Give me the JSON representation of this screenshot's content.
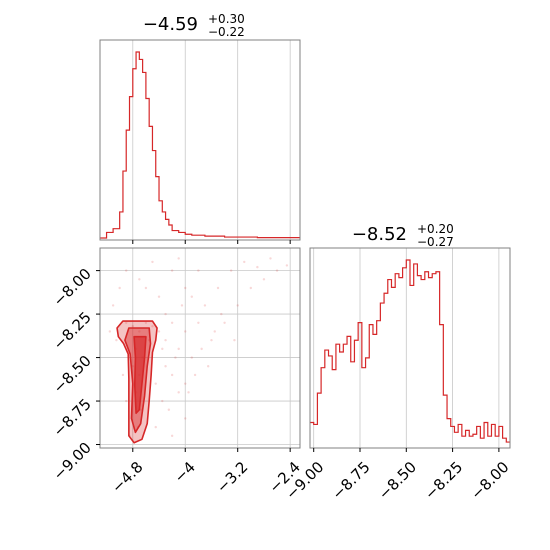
{
  "accent_color": "#d62728",
  "chart_data": [
    {
      "type": "histogram",
      "panel": "top-left",
      "title": {
        "value": "−4.59",
        "plus": "+0.30",
        "minus": "−0.22"
      },
      "xlim": [
        -5.3,
        -2.25
      ],
      "x_ticks": [
        -4.8,
        -4.0,
        -3.2,
        -2.4
      ],
      "grid": true,
      "bins": [
        [
          -5.3,
          -5.2,
          0.0
        ],
        [
          -5.2,
          -5.1,
          0.03
        ],
        [
          -5.1,
          -5.0,
          0.05
        ],
        [
          -5.0,
          -4.95,
          0.14
        ],
        [
          -4.95,
          -4.9,
          0.36
        ],
        [
          -4.9,
          -4.85,
          0.58
        ],
        [
          -4.85,
          -4.8,
          0.76
        ],
        [
          -4.8,
          -4.75,
          0.91
        ],
        [
          -4.75,
          -4.7,
          1.0
        ],
        [
          -4.7,
          -4.65,
          0.96
        ],
        [
          -4.65,
          -4.6,
          0.89
        ],
        [
          -4.6,
          -4.55,
          0.75
        ],
        [
          -4.55,
          -4.5,
          0.6
        ],
        [
          -4.5,
          -4.45,
          0.47
        ],
        [
          -4.45,
          -4.4,
          0.33
        ],
        [
          -4.4,
          -4.35,
          0.2
        ],
        [
          -4.35,
          -4.3,
          0.14
        ],
        [
          -4.3,
          -4.25,
          0.1
        ],
        [
          -4.25,
          -4.2,
          0.07
        ],
        [
          -4.2,
          -4.1,
          0.04
        ],
        [
          -4.1,
          -4.0,
          0.03
        ],
        [
          -4.0,
          -3.9,
          0.02
        ],
        [
          -3.9,
          -3.7,
          0.015
        ],
        [
          -3.7,
          -3.4,
          0.01
        ],
        [
          -3.4,
          -2.9,
          0.005
        ],
        [
          -2.9,
          -2.25,
          0.002
        ]
      ]
    },
    {
      "type": "scatter-contour",
      "panel": "bottom-left",
      "xlim": [
        -5.3,
        -2.25
      ],
      "ylim": [
        -9.02,
        -7.87
      ],
      "x_ticks": [
        -4.8,
        -4.0,
        -3.2,
        -2.4
      ],
      "y_ticks": [
        -9.0,
        -8.75,
        -8.5,
        -8.25,
        -8.0
      ],
      "grid": true,
      "contours": [
        [
          [
            -4.95,
            -8.29
          ],
          [
            -4.5,
            -8.29
          ],
          [
            -4.43,
            -8.33
          ],
          [
            -4.45,
            -8.4
          ],
          [
            -4.5,
            -8.47
          ],
          [
            -4.52,
            -8.6
          ],
          [
            -4.55,
            -8.75
          ],
          [
            -4.58,
            -8.88
          ],
          [
            -4.66,
            -8.97
          ],
          [
            -4.78,
            -8.99
          ],
          [
            -4.86,
            -8.95
          ],
          [
            -4.86,
            -8.8
          ],
          [
            -4.86,
            -8.62
          ],
          [
            -4.87,
            -8.48
          ],
          [
            -4.94,
            -8.42
          ],
          [
            -5.02,
            -8.38
          ],
          [
            -5.04,
            -8.33
          ]
        ],
        [
          [
            -4.86,
            -8.33
          ],
          [
            -4.55,
            -8.33
          ],
          [
            -4.53,
            -8.42
          ],
          [
            -4.58,
            -8.55
          ],
          [
            -4.62,
            -8.72
          ],
          [
            -4.68,
            -8.88
          ],
          [
            -4.76,
            -8.93
          ],
          [
            -4.82,
            -8.85
          ],
          [
            -4.8,
            -8.65
          ],
          [
            -4.84,
            -8.48
          ],
          [
            -4.92,
            -8.4
          ]
        ],
        [
          [
            -4.78,
            -8.38
          ],
          [
            -4.6,
            -8.38
          ],
          [
            -4.62,
            -8.5
          ],
          [
            -4.66,
            -8.65
          ],
          [
            -4.7,
            -8.8
          ],
          [
            -4.75,
            -8.82
          ],
          [
            -4.77,
            -8.66
          ],
          [
            -4.76,
            -8.5
          ]
        ]
      ],
      "points": [
        [
          -4.9,
          -8.3
        ],
        [
          -4.8,
          -8.32
        ],
        [
          -4.7,
          -8.35
        ],
        [
          -4.75,
          -8.45
        ],
        [
          -4.65,
          -8.5
        ],
        [
          -4.8,
          -8.55
        ],
        [
          -4.7,
          -8.6
        ],
        [
          -4.75,
          -8.7
        ],
        [
          -4.68,
          -8.8
        ],
        [
          -4.72,
          -8.9
        ],
        [
          -4.6,
          -8.3
        ],
        [
          -4.55,
          -8.4
        ],
        [
          -4.5,
          -8.32
        ],
        [
          -4.4,
          -8.35
        ],
        [
          -4.3,
          -8.4
        ],
        [
          -4.2,
          -8.3
        ],
        [
          -4.1,
          -8.45
        ],
        [
          -4.0,
          -8.35
        ],
        [
          -4.3,
          -8.55
        ],
        [
          -4.2,
          -8.6
        ],
        [
          -4.1,
          -8.7
        ],
        [
          -4.0,
          -8.65
        ],
        [
          -3.9,
          -8.5
        ],
        [
          -3.8,
          -8.3
        ],
        [
          -3.6,
          -8.4
        ],
        [
          -3.7,
          -8.2
        ],
        [
          -3.5,
          -8.1
        ],
        [
          -3.3,
          -8.0
        ],
        [
          -3.1,
          -7.95
        ],
        [
          -2.9,
          -7.98
        ],
        [
          -2.7,
          -7.93
        ],
        [
          -4.4,
          -8.15
        ],
        [
          -4.6,
          -8.1
        ],
        [
          -4.9,
          -8.0
        ],
        [
          -5.0,
          -8.1
        ],
        [
          -5.1,
          -8.2
        ],
        [
          -4.5,
          -7.95
        ],
        [
          -4.2,
          -8.0
        ],
        [
          -4.0,
          -8.1
        ],
        [
          -4.35,
          -8.75
        ],
        [
          -4.25,
          -8.8
        ],
        [
          -4.45,
          -8.9
        ],
        [
          -4.2,
          -8.95
        ],
        [
          -4.0,
          -8.85
        ],
        [
          -3.95,
          -8.7
        ],
        [
          -3.85,
          -8.6
        ],
        [
          -3.4,
          -8.3
        ],
        [
          -3.2,
          -8.2
        ],
        [
          -3.0,
          -8.1
        ],
        [
          -2.8,
          -8.05
        ],
        [
          -2.6,
          -8.0
        ],
        [
          -2.45,
          -7.97
        ],
        [
          -4.15,
          -8.5
        ],
        [
          -4.45,
          -8.65
        ],
        [
          -4.35,
          -8.45
        ],
        [
          -5.05,
          -8.4
        ],
        [
          -4.95,
          -8.6
        ],
        [
          -4.9,
          -8.75
        ],
        [
          -4.85,
          -8.95
        ],
        [
          -4.3,
          -8.25
        ],
        [
          -3.75,
          -8.45
        ],
        [
          -3.65,
          -8.55
        ],
        [
          -3.55,
          -8.35
        ],
        [
          -3.45,
          -8.25
        ],
        [
          -3.25,
          -8.4
        ],
        [
          -4.05,
          -8.2
        ],
        [
          -3.9,
          -8.15
        ],
        [
          -5.15,
          -8.35
        ],
        [
          -4.7,
          -8.05
        ],
        [
          -4.1,
          -7.93
        ],
        [
          -3.8,
          -8.0
        ]
      ]
    },
    {
      "type": "histogram",
      "panel": "bottom-right",
      "title": {
        "value": "−8.52",
        "plus": "+0.20",
        "minus": "−0.27"
      },
      "xlim": [
        -9.02,
        -7.94
      ],
      "x_ticks": [
        -9.0,
        -8.75,
        -8.5,
        -8.25,
        -8.0
      ],
      "grid": true,
      "bins": [
        [
          -9.02,
          -9.0,
          0.12
        ],
        [
          -9.0,
          -8.98,
          0.11
        ],
        [
          -8.98,
          -8.96,
          0.27
        ],
        [
          -8.96,
          -8.94,
          0.4
        ],
        [
          -8.94,
          -8.92,
          0.49
        ],
        [
          -8.92,
          -8.9,
          0.46
        ],
        [
          -8.9,
          -8.88,
          0.39
        ],
        [
          -8.88,
          -8.86,
          0.52
        ],
        [
          -8.86,
          -8.84,
          0.48
        ],
        [
          -8.84,
          -8.82,
          0.52
        ],
        [
          -8.82,
          -8.8,
          0.56
        ],
        [
          -8.8,
          -8.78,
          0.43
        ],
        [
          -8.78,
          -8.76,
          0.54
        ],
        [
          -8.76,
          -8.74,
          0.63
        ],
        [
          -8.74,
          -8.72,
          0.4
        ],
        [
          -8.72,
          -8.7,
          0.45
        ],
        [
          -8.7,
          -8.68,
          0.62
        ],
        [
          -8.68,
          -8.66,
          0.57
        ],
        [
          -8.66,
          -8.64,
          0.64
        ],
        [
          -8.64,
          -8.62,
          0.73
        ],
        [
          -8.62,
          -8.6,
          0.78
        ],
        [
          -8.6,
          -8.58,
          0.85
        ],
        [
          -8.58,
          -8.56,
          0.81
        ],
        [
          -8.56,
          -8.54,
          0.88
        ],
        [
          -8.54,
          -8.52,
          0.86
        ],
        [
          -8.52,
          -8.5,
          0.91
        ],
        [
          -8.5,
          -8.48,
          0.95
        ],
        [
          -8.48,
          -8.46,
          0.82
        ],
        [
          -8.46,
          -8.44,
          0.93
        ],
        [
          -8.44,
          -8.42,
          0.87
        ],
        [
          -8.42,
          -8.4,
          0.85
        ],
        [
          -8.4,
          -8.38,
          0.89
        ],
        [
          -8.38,
          -8.36,
          0.86
        ],
        [
          -8.36,
          -8.34,
          0.88
        ],
        [
          -8.34,
          -8.32,
          0.89
        ],
        [
          -8.32,
          -8.3,
          0.62
        ],
        [
          -8.3,
          -8.28,
          0.26
        ],
        [
          -8.28,
          -8.26,
          0.14
        ],
        [
          -8.26,
          -8.24,
          0.1
        ],
        [
          -8.24,
          -8.22,
          0.07
        ],
        [
          -8.22,
          -8.2,
          0.11
        ],
        [
          -8.2,
          -8.18,
          0.05
        ],
        [
          -8.18,
          -8.16,
          0.08
        ],
        [
          -8.16,
          -8.14,
          0.05
        ],
        [
          -8.14,
          -8.12,
          0.06
        ],
        [
          -8.12,
          -8.1,
          0.1
        ],
        [
          -8.1,
          -8.08,
          0.04
        ],
        [
          -8.08,
          -8.06,
          0.12
        ],
        [
          -8.06,
          -8.04,
          0.05
        ],
        [
          -8.04,
          -8.02,
          0.11
        ],
        [
          -8.02,
          -8.0,
          0.05
        ],
        [
          -8.0,
          -7.98,
          0.1
        ],
        [
          -7.98,
          -7.96,
          0.04
        ],
        [
          -7.96,
          -7.94,
          0.02
        ]
      ]
    }
  ]
}
